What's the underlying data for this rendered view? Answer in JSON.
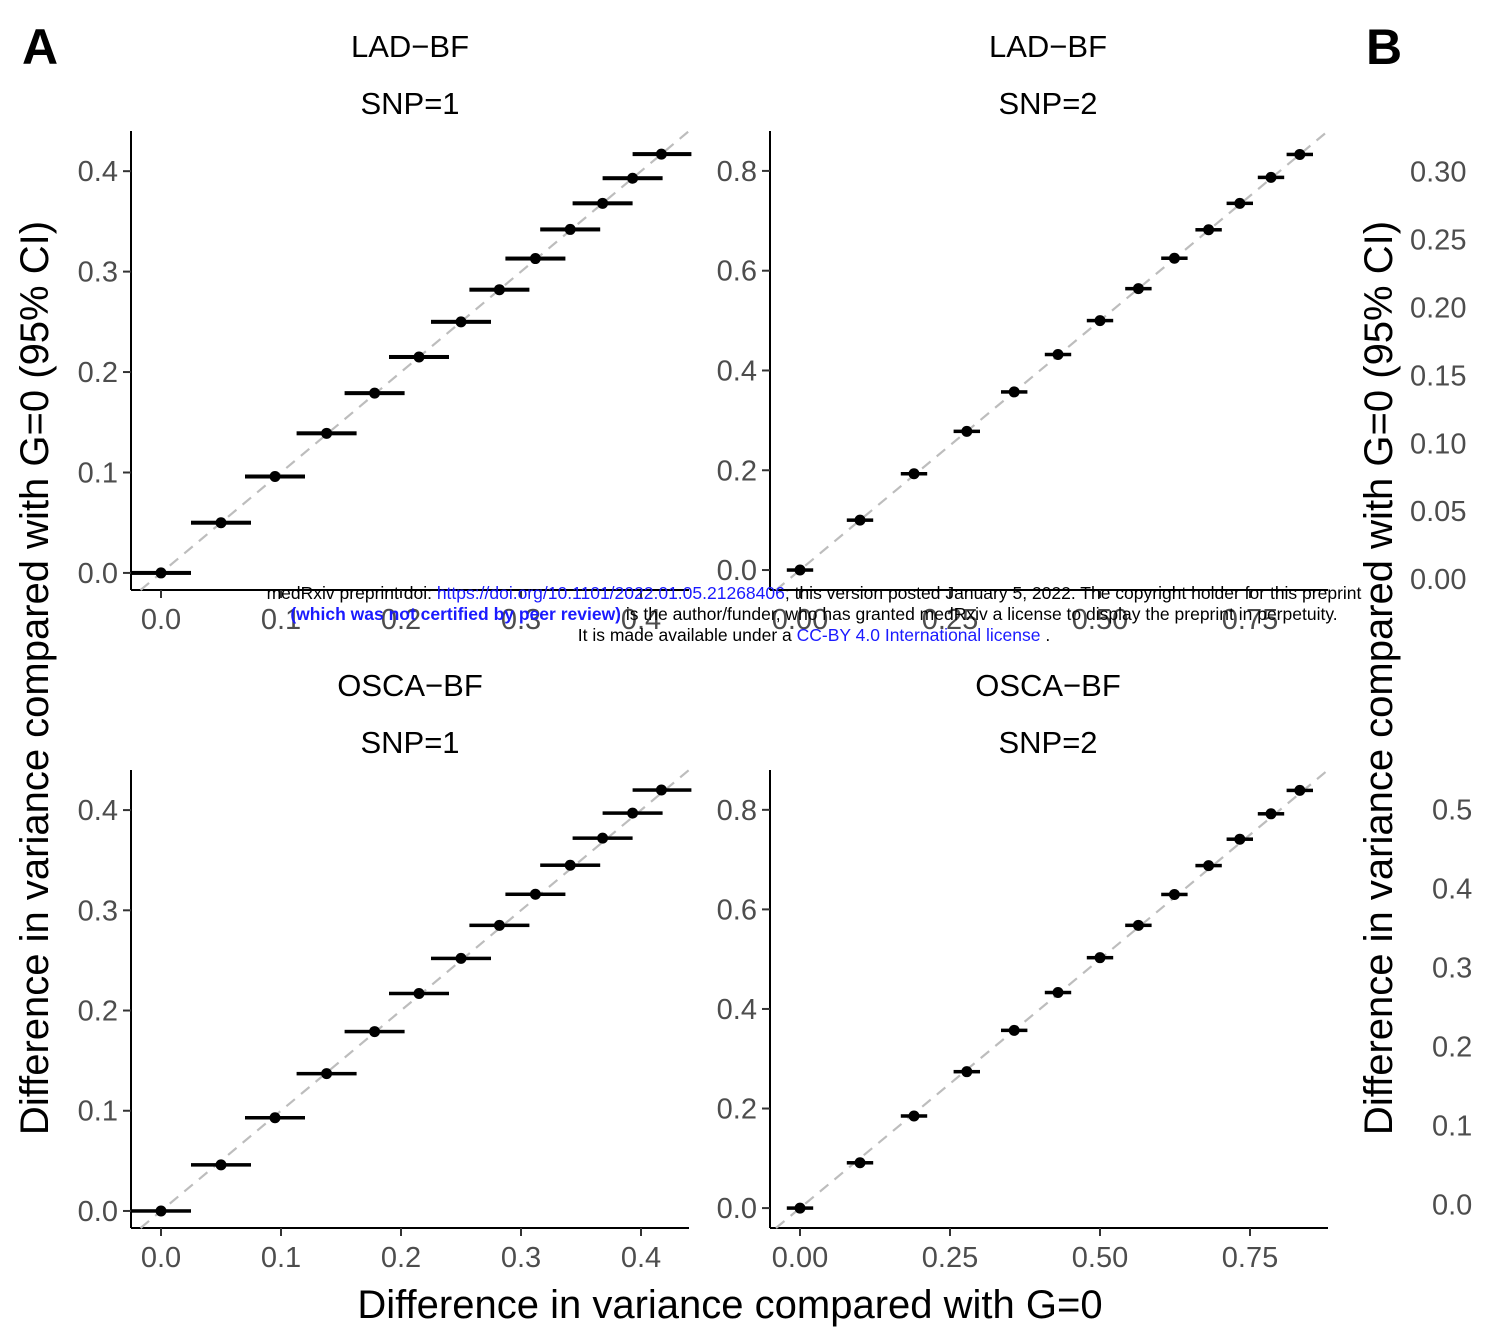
{
  "panel_letters": {
    "a": "A",
    "b": "B"
  },
  "xlabel": "Difference in variance compared with G=0",
  "ylabel": "Difference in variance compared with G=0 (95% CI)",
  "watermark": {
    "line1_pre": "medRxiv preprint doi: ",
    "line1_link": "https://doi.org/10.1101/2022.01.05.21268406",
    "line1_post": "; this version posted January 5, 2022. The copyright holder for this preprint",
    "line2_bold": "(which was not certified by peer review)",
    "line2_post": " is the author/funder, who has granted medRxiv a license to display the preprint in perpetuity.",
    "line3_pre": "It is made available under a ",
    "line3_link": "CC-BY 4.0 International license",
    "line3_post": " ."
  },
  "chart_data": [
    {
      "type": "scatter",
      "title": "LAD−BF",
      "subtitle": "SNP=1",
      "xlim": [
        -0.025,
        0.44
      ],
      "ylim": [
        -0.017,
        0.44
      ],
      "xticks": [
        0.0,
        0.1,
        0.2,
        0.3,
        0.4
      ],
      "xtick_labels": [
        "0.0",
        "0.1",
        "0.2",
        "0.3",
        "0.4"
      ],
      "yticks": [
        0.0,
        0.1,
        0.2,
        0.3,
        0.4
      ],
      "ytick_labels": [
        "0.0",
        "0.1",
        "0.2",
        "0.3",
        "0.4"
      ],
      "reference_line": "y=x dashed",
      "x": [
        0.0,
        0.05,
        0.095,
        0.138,
        0.178,
        0.215,
        0.25,
        0.282,
        0.312,
        0.341,
        0.368,
        0.393,
        0.417
      ],
      "y": [
        0.0,
        0.05,
        0.096,
        0.139,
        0.179,
        0.215,
        0.25,
        0.282,
        0.313,
        0.342,
        0.368,
        0.393,
        0.417
      ],
      "xerr_low": [
        -0.025,
        0.025,
        0.07,
        0.113,
        0.153,
        0.19,
        0.225,
        0.257,
        0.287,
        0.316,
        0.343,
        0.368,
        0.393
      ],
      "xerr_high": [
        0.025,
        0.075,
        0.12,
        0.163,
        0.203,
        0.24,
        0.275,
        0.307,
        0.337,
        0.366,
        0.393,
        0.418,
        0.442
      ],
      "yerr_low": [
        -0.002,
        0.048,
        0.094,
        0.137,
        0.177,
        0.213,
        0.248,
        0.28,
        0.311,
        0.34,
        0.366,
        0.391,
        0.415
      ],
      "yerr_high": [
        0.002,
        0.052,
        0.098,
        0.141,
        0.181,
        0.217,
        0.252,
        0.284,
        0.315,
        0.344,
        0.37,
        0.395,
        0.419
      ]
    },
    {
      "type": "scatter",
      "title": "LAD−BF",
      "subtitle": "SNP=2",
      "xlim": [
        -0.05,
        0.88
      ],
      "ylim": [
        -0.04,
        0.88
      ],
      "xticks": [
        0.0,
        0.25,
        0.5,
        0.75
      ],
      "xtick_labels": [
        "0.00",
        "0.25",
        "0.50",
        "0.75"
      ],
      "yticks": [
        0.0,
        0.2,
        0.4,
        0.6,
        0.8
      ],
      "ytick_labels": [
        "0.0",
        "0.2",
        "0.4",
        "0.6",
        "0.8"
      ],
      "reference_line": "y=x dashed",
      "x": [
        0.0,
        0.1,
        0.19,
        0.278,
        0.357,
        0.43,
        0.5,
        0.564,
        0.624,
        0.681,
        0.733,
        0.785,
        0.833
      ],
      "y": [
        0.0,
        0.1,
        0.193,
        0.278,
        0.357,
        0.432,
        0.5,
        0.564,
        0.625,
        0.682,
        0.735,
        0.787,
        0.833
      ],
      "xerr_low": [
        -0.022,
        0.078,
        0.168,
        0.256,
        0.335,
        0.408,
        0.478,
        0.542,
        0.602,
        0.659,
        0.711,
        0.763,
        0.811
      ],
      "xerr_high": [
        0.022,
        0.122,
        0.212,
        0.3,
        0.379,
        0.452,
        0.522,
        0.586,
        0.646,
        0.703,
        0.755,
        0.807,
        0.855
      ],
      "yerr_low": [
        -0.003,
        0.097,
        0.19,
        0.275,
        0.354,
        0.429,
        0.497,
        0.561,
        0.622,
        0.679,
        0.732,
        0.784,
        0.83
      ],
      "yerr_high": [
        0.003,
        0.103,
        0.196,
        0.281,
        0.36,
        0.435,
        0.503,
        0.567,
        0.628,
        0.685,
        0.738,
        0.79,
        0.836
      ]
    },
    {
      "type": "scatter",
      "title": "OSCA−BF",
      "subtitle": "SNP=1",
      "xlim": [
        -0.025,
        0.44
      ],
      "ylim": [
        -0.017,
        0.44
      ],
      "xticks": [
        0.0,
        0.1,
        0.2,
        0.3,
        0.4
      ],
      "xtick_labels": [
        "0.0",
        "0.1",
        "0.2",
        "0.3",
        "0.4"
      ],
      "yticks": [
        0.0,
        0.1,
        0.2,
        0.3,
        0.4
      ],
      "ytick_labels": [
        "0.0",
        "0.1",
        "0.2",
        "0.3",
        "0.4"
      ],
      "reference_line": "y=x dashed",
      "x": [
        0.0,
        0.05,
        0.095,
        0.138,
        0.178,
        0.215,
        0.25,
        0.282,
        0.312,
        0.341,
        0.368,
        0.393,
        0.417
      ],
      "y": [
        0.0,
        0.046,
        0.093,
        0.137,
        0.179,
        0.217,
        0.252,
        0.285,
        0.316,
        0.345,
        0.372,
        0.397,
        0.42
      ],
      "xerr_low": [
        -0.025,
        0.025,
        0.07,
        0.113,
        0.153,
        0.19,
        0.225,
        0.257,
        0.287,
        0.316,
        0.343,
        0.368,
        0.393
      ],
      "xerr_high": [
        0.025,
        0.075,
        0.12,
        0.163,
        0.203,
        0.24,
        0.275,
        0.307,
        0.337,
        0.366,
        0.393,
        0.418,
        0.442
      ],
      "yerr_low": [
        -0.001,
        0.045,
        0.092,
        0.136,
        0.178,
        0.216,
        0.251,
        0.284,
        0.315,
        0.344,
        0.371,
        0.396,
        0.419
      ],
      "yerr_high": [
        0.001,
        0.047,
        0.094,
        0.138,
        0.18,
        0.218,
        0.253,
        0.286,
        0.317,
        0.346,
        0.373,
        0.398,
        0.421
      ]
    },
    {
      "type": "scatter",
      "title": "OSCA−BF",
      "subtitle": "SNP=2",
      "xlim": [
        -0.05,
        0.88
      ],
      "ylim": [
        -0.04,
        0.88
      ],
      "xticks": [
        0.0,
        0.25,
        0.5,
        0.75
      ],
      "xtick_labels": [
        "0.00",
        "0.25",
        "0.50",
        "0.75"
      ],
      "yticks": [
        0.0,
        0.2,
        0.4,
        0.6,
        0.8
      ],
      "ytick_labels": [
        "0.0",
        "0.2",
        "0.4",
        "0.6",
        "0.8"
      ],
      "reference_line": "y=x dashed",
      "x": [
        0.0,
        0.1,
        0.19,
        0.278,
        0.357,
        0.43,
        0.5,
        0.564,
        0.624,
        0.681,
        0.733,
        0.785,
        0.833
      ],
      "y": [
        0.0,
        0.091,
        0.185,
        0.274,
        0.357,
        0.433,
        0.503,
        0.568,
        0.63,
        0.688,
        0.741,
        0.792,
        0.839
      ],
      "xerr_low": [
        -0.022,
        0.078,
        0.168,
        0.256,
        0.335,
        0.408,
        0.478,
        0.542,
        0.602,
        0.659,
        0.711,
        0.763,
        0.811
      ],
      "xerr_high": [
        0.022,
        0.122,
        0.212,
        0.3,
        0.379,
        0.452,
        0.522,
        0.586,
        0.646,
        0.703,
        0.755,
        0.807,
        0.855
      ],
      "yerr_low": [
        -0.002,
        0.089,
        0.183,
        0.272,
        0.355,
        0.431,
        0.501,
        0.566,
        0.628,
        0.686,
        0.739,
        0.79,
        0.837
      ],
      "yerr_high": [
        0.002,
        0.093,
        0.187,
        0.276,
        0.359,
        0.435,
        0.505,
        0.57,
        0.632,
        0.69,
        0.743,
        0.794,
        0.841
      ]
    },
    {
      "type": "scatter",
      "title": "",
      "panel": "B-top (partially visible)",
      "ylim": [
        -0.008,
        0.33
      ],
      "yticks": [
        0.0,
        0.05,
        0.1,
        0.15,
        0.2,
        0.25,
        0.3
      ],
      "ytick_labels": [
        "0.00",
        "0.05",
        "0.10",
        "0.15",
        "0.20",
        "0.25",
        "0.30"
      ]
    },
    {
      "type": "scatter",
      "title": "",
      "panel": "B-bottom (partially visible)",
      "ylim": [
        -0.03,
        0.55
      ],
      "yticks": [
        0.0,
        0.1,
        0.2,
        0.3,
        0.4,
        0.5
      ],
      "ytick_labels": [
        "0.0",
        "0.1",
        "0.2",
        "0.3",
        "0.4",
        "0.5"
      ]
    }
  ]
}
